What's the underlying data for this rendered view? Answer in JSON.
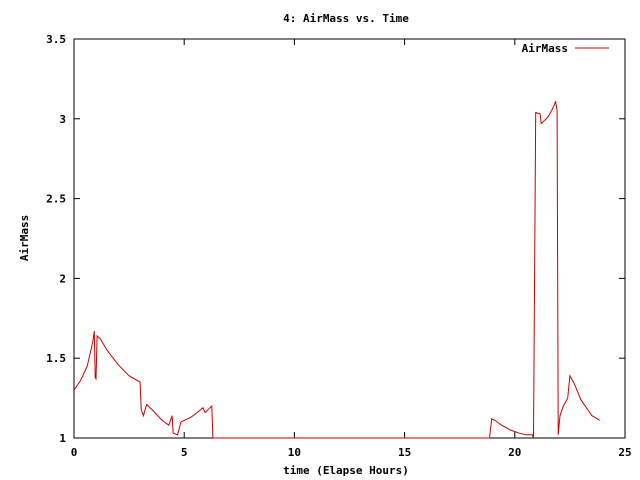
{
  "chart_data": {
    "type": "line",
    "title": "4: AirMass vs. Time",
    "xlabel": "time (Elapse Hours)",
    "ylabel": "AirMass",
    "xlim": [
      0,
      25
    ],
    "ylim": [
      1,
      3.5
    ],
    "xticks": [
      0,
      5,
      10,
      15,
      20,
      25
    ],
    "yticks": [
      1,
      1.5,
      2,
      2.5,
      3,
      3.5
    ],
    "ytick_labels": [
      "1",
      "1.5",
      "2",
      "2.5",
      "3",
      "3.5"
    ],
    "grid": false,
    "legend": {
      "position": "top-right"
    },
    "series": [
      {
        "name": "AirMass",
        "color": "#cc0000",
        "points": [
          [
            0.0,
            1.3
          ],
          [
            0.3,
            1.36
          ],
          [
            0.6,
            1.45
          ],
          [
            0.85,
            1.6
          ],
          [
            0.92,
            1.67
          ],
          [
            0.96,
            1.38
          ],
          [
            1.0,
            1.37
          ],
          [
            1.05,
            1.64
          ],
          [
            1.2,
            1.62
          ],
          [
            1.5,
            1.55
          ],
          [
            2.0,
            1.46
          ],
          [
            2.5,
            1.39
          ],
          [
            3.0,
            1.35
          ],
          [
            3.05,
            1.18
          ],
          [
            3.15,
            1.14
          ],
          [
            3.3,
            1.21
          ],
          [
            3.6,
            1.17
          ],
          [
            4.0,
            1.11
          ],
          [
            4.3,
            1.08
          ],
          [
            4.45,
            1.14
          ],
          [
            4.5,
            1.03
          ],
          [
            4.7,
            1.02
          ],
          [
            4.85,
            1.1
          ],
          [
            5.0,
            1.11
          ],
          [
            5.3,
            1.13
          ],
          [
            5.6,
            1.16
          ],
          [
            5.85,
            1.19
          ],
          [
            5.95,
            1.16
          ],
          [
            6.1,
            1.18
          ],
          [
            6.25,
            1.2
          ],
          [
            6.3,
            1.0
          ],
          [
            18.85,
            1.0
          ],
          [
            18.95,
            1.12
          ],
          [
            19.1,
            1.11
          ],
          [
            19.4,
            1.08
          ],
          [
            19.8,
            1.05
          ],
          [
            20.2,
            1.03
          ],
          [
            20.5,
            1.02
          ],
          [
            20.8,
            1.02
          ],
          [
            20.85,
            1.0
          ],
          [
            20.95,
            3.04
          ],
          [
            21.15,
            3.03
          ],
          [
            21.2,
            2.97
          ],
          [
            21.5,
            3.01
          ],
          [
            21.7,
            3.06
          ],
          [
            21.8,
            3.09
          ],
          [
            21.85,
            3.11
          ],
          [
            21.92,
            3.05
          ],
          [
            21.97,
            1.02
          ],
          [
            22.05,
            1.14
          ],
          [
            22.2,
            1.2
          ],
          [
            22.4,
            1.25
          ],
          [
            22.5,
            1.39
          ],
          [
            22.7,
            1.34
          ],
          [
            23.0,
            1.24
          ],
          [
            23.2,
            1.2
          ],
          [
            23.5,
            1.14
          ],
          [
            23.75,
            1.12
          ],
          [
            23.85,
            1.11
          ]
        ]
      }
    ]
  }
}
